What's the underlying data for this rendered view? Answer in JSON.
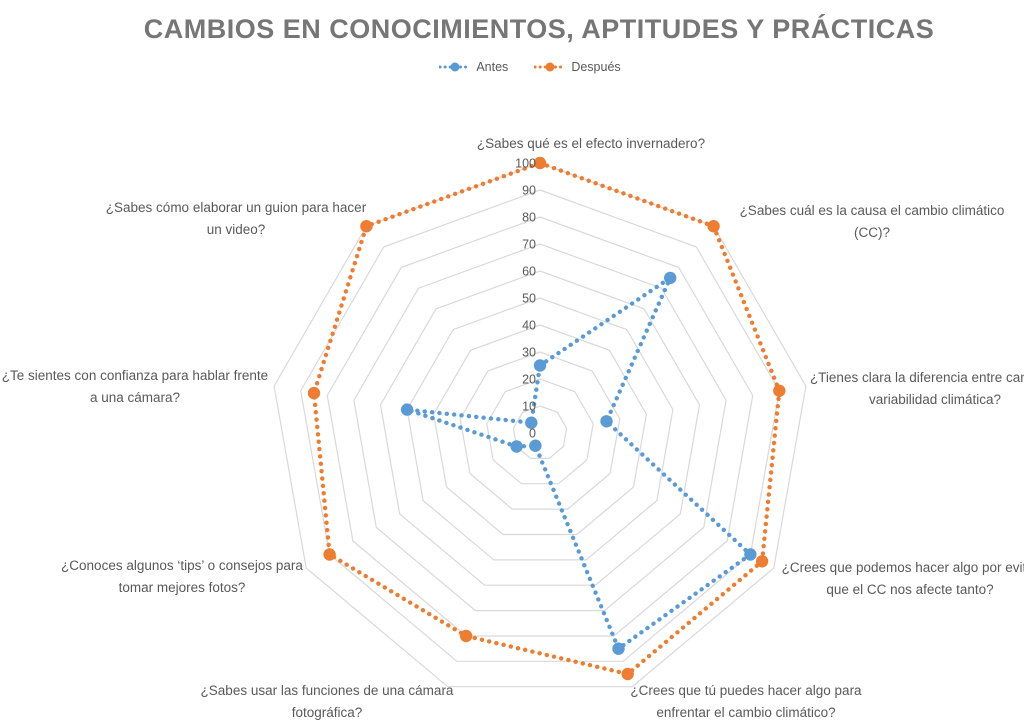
{
  "title": "CAMBIOS EN CONOCIMIENTOS, APTITUDES Y PRÁCTICAS",
  "legend": {
    "items": [
      {
        "label": "Antes",
        "color": "#5B9BD5"
      },
      {
        "label": "Después",
        "color": "#ED7D31"
      }
    ]
  },
  "colors": {
    "antes": "#5B9BD5",
    "despues": "#ED7D31",
    "gridline": "#D9D9D9",
    "title_text": "#767676",
    "label_text": "#595959"
  },
  "chart_data": {
    "type": "radar",
    "title": "CAMBIOS EN CONOCIMIENTOS, APTITUDES Y PRÁCTICAS",
    "legend_position": "top",
    "grid": true,
    "axis": {
      "min": 0,
      "max": 100,
      "step": 10,
      "ticks": [
        0,
        10,
        20,
        30,
        40,
        50,
        60,
        70,
        80,
        90,
        100
      ]
    },
    "categories": [
      "¿Sabes qué es el efecto invernadero?",
      "¿Sabes cuál es la causa el cambio climático (CC)?",
      "¿Tienes clara la diferencia entre cambio y variabilidad climática?",
      "¿Crees que podemos hacer algo por evitar que el CC nos afecte tanto?",
      "¿Crees que tú puedes hacer algo para enfrentar el cambio climático?",
      "¿Sabes usar las funciones de una cámara fotográfica?",
      "¿Conoces algunos ‘tips’ o consejos para tomar mejores fotos?",
      "¿Te sientes con confianza para hablar frente a una cámara?",
      "¿Sabes cómo elaborar un guion para hacer un video?"
    ],
    "category_label_lines": [
      [
        "¿Sabes qué es el efecto invernadero?"
      ],
      [
        "¿Sabes cuál es la causa el cambio climático",
        "(CC)?"
      ],
      [
        "¿Tienes clara la diferencia entre cambio y",
        "variabilidad climática?"
      ],
      [
        "¿Crees que podemos hacer algo por evitar",
        "que el CC nos afecte tanto?"
      ],
      [
        "¿Crees que tú puedes hacer algo para",
        "enfrentar el cambio climático?"
      ],
      [
        "¿Sabes usar las funciones de una cámara",
        "fotográfica?"
      ],
      [
        "¿Conoces algunos ‘tips’ o consejos para",
        "tomar mejores fotos?"
      ],
      [
        "¿Te sientes con confianza para hablar frente",
        "a una cámara?"
      ],
      [
        "¿Sabes cómo elaborar un guion para hacer",
        "un video?"
      ]
    ],
    "series": [
      {
        "name": "Antes",
        "color": "#5B9BD5",
        "values": [
          25,
          75,
          25,
          90,
          85,
          5,
          10,
          50,
          5
        ]
      },
      {
        "name": "Después",
        "color": "#ED7D31",
        "values": [
          100,
          100,
          90,
          95,
          95,
          80,
          90,
          85,
          100
        ]
      }
    ]
  }
}
